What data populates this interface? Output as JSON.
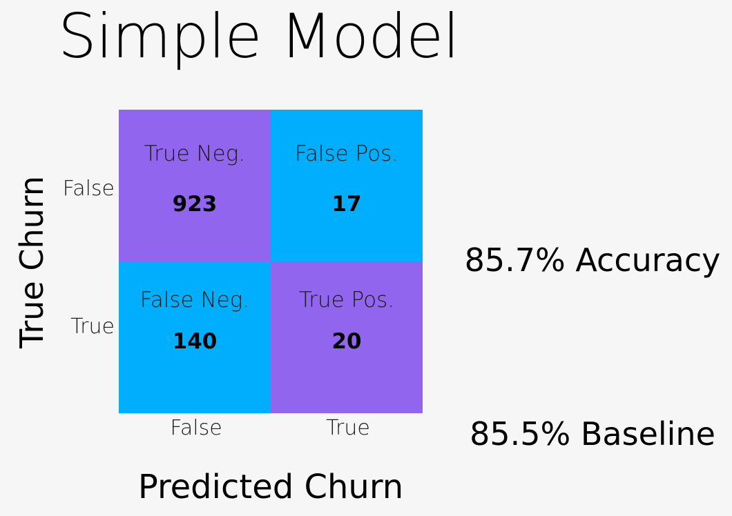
{
  "colors": {
    "background": "#f6f6f6",
    "purple": "#9265ee",
    "cyan": "#00aefe"
  },
  "chart_data": {
    "type": "heatmap",
    "title": "Simple Model",
    "xlabel": "Predicted Churn",
    "ylabel": "True Churn",
    "x_categories": [
      "False",
      "True"
    ],
    "y_categories": [
      "False",
      "True"
    ],
    "cells": [
      [
        {
          "label": "True Neg.",
          "value": "923",
          "color": "#9265ee"
        },
        {
          "label": "False Pos.",
          "value": "17",
          "color": "#00aefe"
        }
      ],
      [
        {
          "label": "False Neg.",
          "value": "140",
          "color": "#00aefe"
        },
        {
          "label": "True Pos.",
          "value": "20",
          "color": "#9265ee"
        }
      ]
    ],
    "annotations": [
      "85.7% Accuracy",
      "85.5% Baseline"
    ]
  }
}
